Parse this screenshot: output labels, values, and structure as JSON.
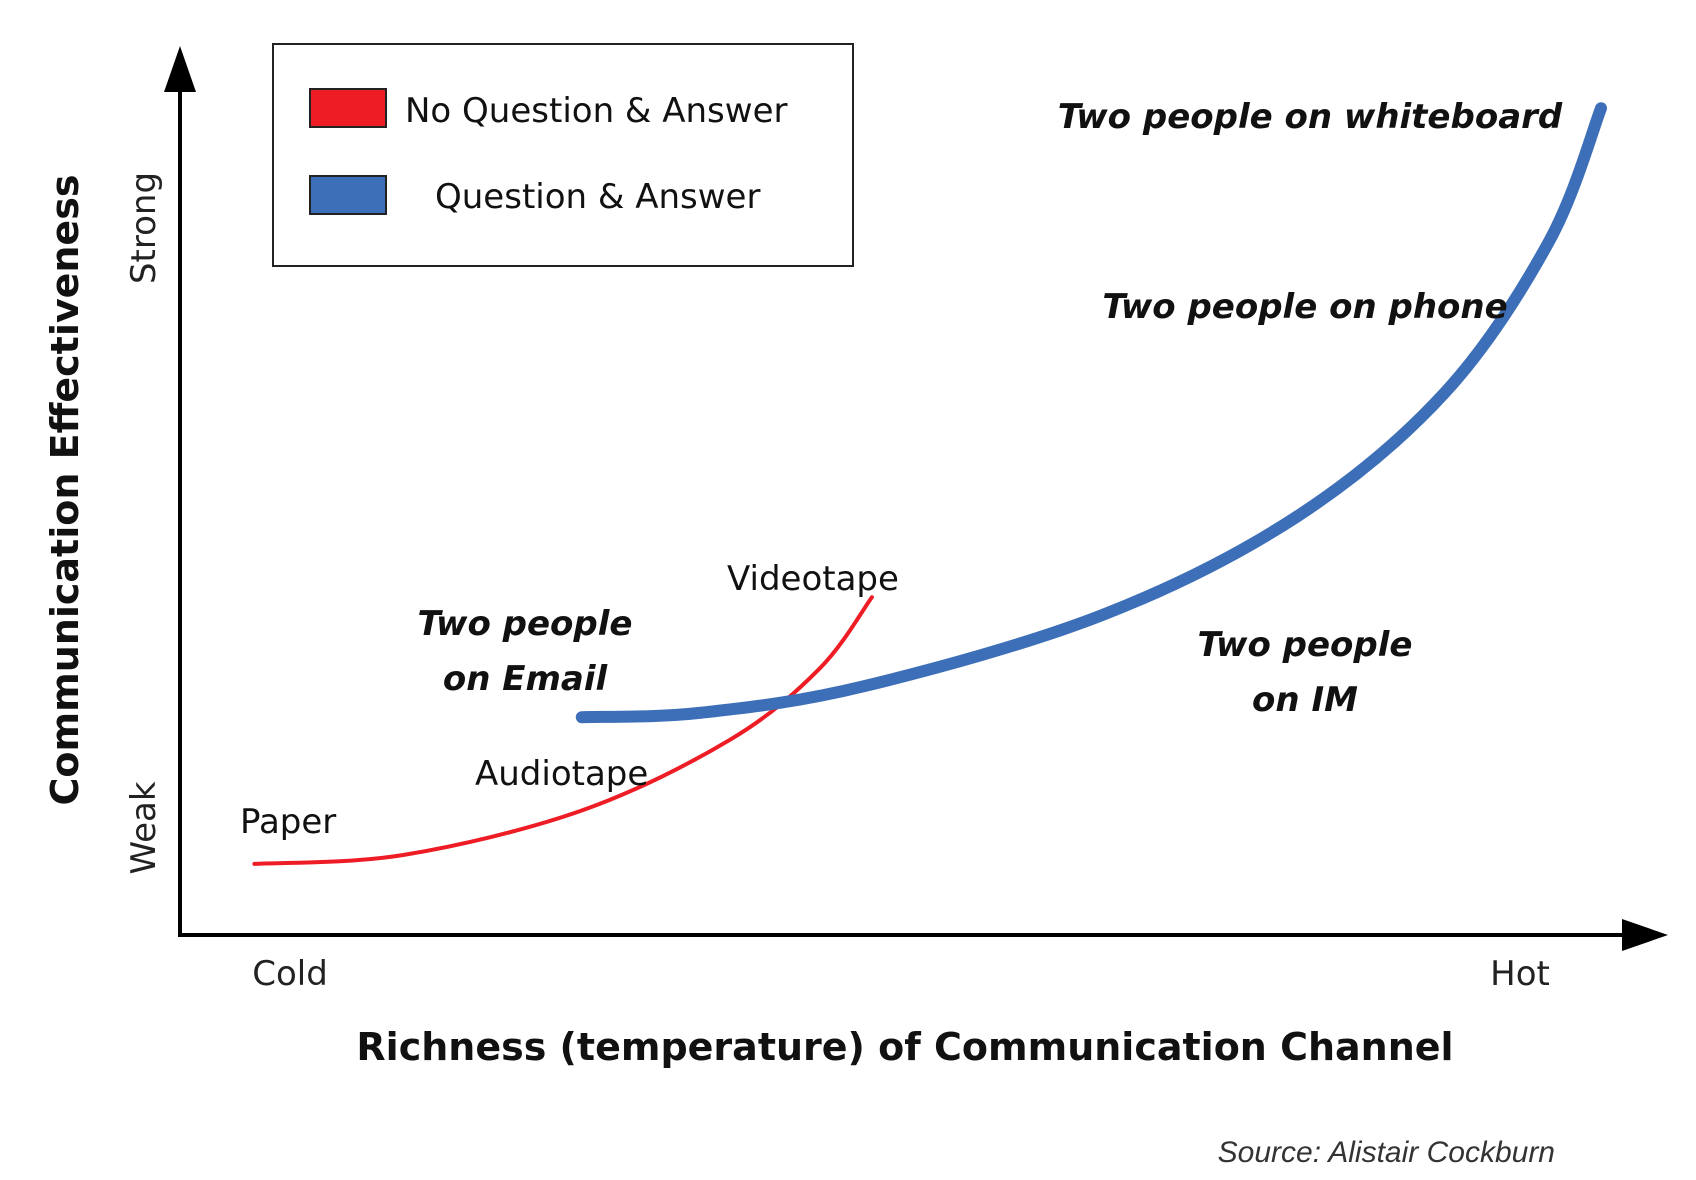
{
  "chart_data": {
    "type": "line",
    "title": "",
    "xlabel": "Richness (temperature) of Communication Channel",
    "ylabel": "Communication Effectiveness",
    "x_ticks": [
      "Cold",
      "Hot"
    ],
    "y_ticks": [
      "Weak",
      "Strong"
    ],
    "xlim": [
      0,
      100
    ],
    "ylim": [
      0,
      100
    ],
    "legend": {
      "position": "top-left",
      "entries": [
        {
          "label": "No Question & Answer",
          "color": "#ee1c25"
        },
        {
          "label": "Question & Answer",
          "color": "#3d6fb8"
        }
      ]
    },
    "series": [
      {
        "name": "No Question & Answer",
        "color": "#ee1c25",
        "points": [
          {
            "x": 5,
            "y": 8
          },
          {
            "x": 15,
            "y": 9
          },
          {
            "x": 27,
            "y": 14
          },
          {
            "x": 37,
            "y": 22
          },
          {
            "x": 43,
            "y": 30
          },
          {
            "x": 46.5,
            "y": 38
          }
        ],
        "annotations": [
          {
            "label": "Paper",
            "x": 5,
            "y": 8
          },
          {
            "label": "Audiotape",
            "x": 27,
            "y": 14
          },
          {
            "label": "Videotape",
            "x": 46.5,
            "y": 38
          }
        ]
      },
      {
        "name": "Question & Answer",
        "color": "#3d6fb8",
        "points": [
          {
            "x": 27,
            "y": 24.5
          },
          {
            "x": 35,
            "y": 25
          },
          {
            "x": 46,
            "y": 28
          },
          {
            "x": 62,
            "y": 36
          },
          {
            "x": 75,
            "y": 47
          },
          {
            "x": 85,
            "y": 61
          },
          {
            "x": 92,
            "y": 78
          },
          {
            "x": 95.5,
            "y": 93
          }
        ],
        "annotations": [
          {
            "label": "Two people on Email",
            "x": 27,
            "y": 24.5
          },
          {
            "label": "Two people on IM",
            "x": 62,
            "y": 36
          },
          {
            "label": "Two people on phone",
            "x": 92,
            "y": 78
          },
          {
            "label": "Two people on whiteboard",
            "x": 95.5,
            "y": 93
          }
        ]
      }
    ],
    "labels": {
      "paper": "Paper",
      "audiotape": "Audiotape",
      "videotape": "Videotape",
      "email_1": "Two people",
      "email_2": "on Email",
      "im_1": "Two people",
      "im_2": "on IM",
      "phone": "Two people on phone",
      "whiteboard": "Two people on whiteboard"
    },
    "grid": false,
    "source": "Source: Alistair Cockburn"
  }
}
